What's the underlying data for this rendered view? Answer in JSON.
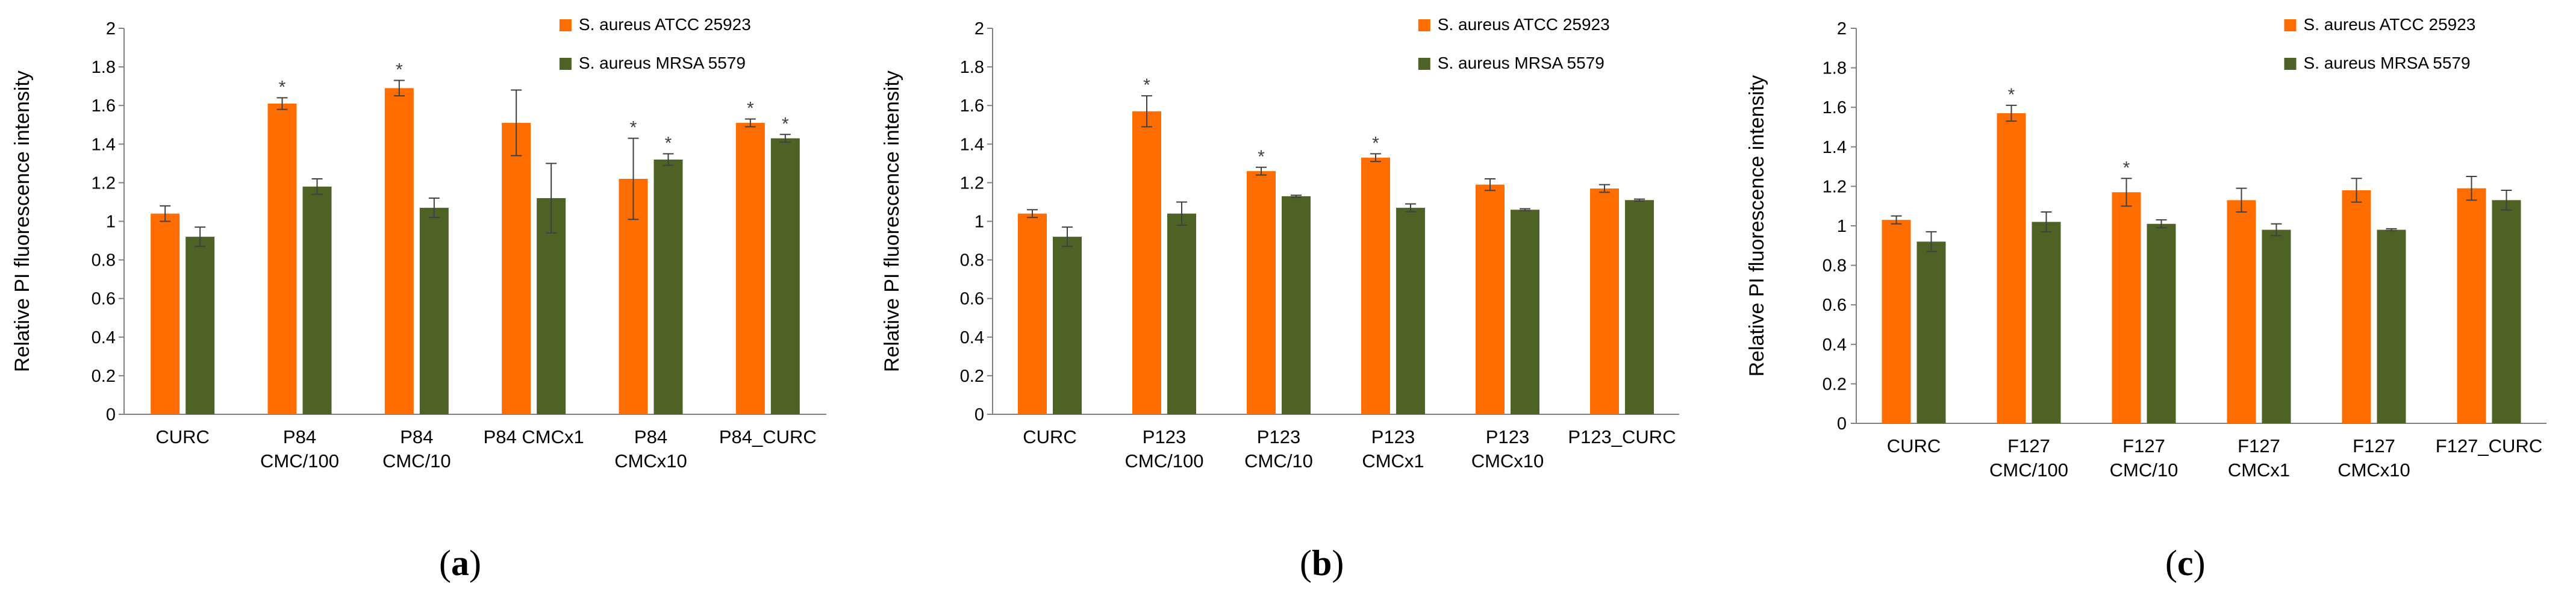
{
  "colors": {
    "atcc": "#FF6D00",
    "mrsa": "#4E6225",
    "axis": "#808080",
    "text": "#000000"
  },
  "chart_data": [
    {
      "type": "bar",
      "panel_label": "a",
      "ylabel": "Relative PI fluorescence intensity",
      "ylim": [
        0,
        2
      ],
      "yticks": [
        "0",
        "0.2",
        "0.4",
        "0.6",
        "0.8",
        "1",
        "1.2",
        "1.4",
        "1.6",
        "1.8",
        "2"
      ],
      "categories": [
        [
          "CURC"
        ],
        [
          "P84",
          "CMC/100"
        ],
        [
          "P84",
          "CMC/10"
        ],
        [
          "P84 CMCx1"
        ],
        [
          "P84",
          "CMCx10"
        ],
        [
          "P84_CURC"
        ]
      ],
      "series": [
        {
          "name": "S. aureus ATCC 25923",
          "values": [
            1.04,
            1.61,
            1.69,
            1.51,
            1.22,
            1.51
          ],
          "errors": [
            0.04,
            0.03,
            0.04,
            0.17,
            0.21,
            0.02
          ],
          "stars": [
            false,
            true,
            true,
            false,
            true,
            true
          ]
        },
        {
          "name": "S. aureus MRSA 5579",
          "values": [
            0.92,
            1.18,
            1.07,
            1.12,
            1.32,
            1.43
          ],
          "errors": [
            0.05,
            0.04,
            0.05,
            0.18,
            0.03,
            0.02
          ],
          "stars": [
            false,
            false,
            false,
            false,
            true,
            true
          ]
        }
      ],
      "star_symbol": "*"
    },
    {
      "type": "bar",
      "panel_label": "b",
      "ylabel": "Relative PI fluorescence intensity",
      "ylim": [
        0,
        2
      ],
      "yticks": [
        "0",
        "0.2",
        "0.4",
        "0.6",
        "0.8",
        "1",
        "1.2",
        "1.4",
        "1.6",
        "1.8",
        "2"
      ],
      "categories": [
        [
          "CURC"
        ],
        [
          "P123",
          "CMC/100"
        ],
        [
          "P123",
          "CMC/10"
        ],
        [
          "P123",
          "CMCx1"
        ],
        [
          "P123",
          "CMCx10"
        ],
        [
          "P123_CURC"
        ]
      ],
      "series": [
        {
          "name": "S. aureus ATCC 25923",
          "values": [
            1.04,
            1.57,
            1.26,
            1.33,
            1.19,
            1.17
          ],
          "errors": [
            0.02,
            0.08,
            0.02,
            0.02,
            0.03,
            0.02
          ],
          "stars": [
            false,
            true,
            true,
            true,
            false,
            false
          ]
        },
        {
          "name": "S. aureus MRSA 5579",
          "values": [
            0.92,
            1.04,
            1.13,
            1.07,
            1.06,
            1.11
          ],
          "errors": [
            0.05,
            0.06,
            0.005,
            0.02,
            0.005,
            0.005
          ],
          "stars": [
            false,
            false,
            false,
            false,
            false,
            false
          ]
        }
      ],
      "star_symbol": "*"
    },
    {
      "type": "bar",
      "panel_label": "c",
      "ylabel": "Relative PI fluorescence intensity",
      "ylim": [
        0,
        2
      ],
      "yticks": [
        "0",
        "0.2",
        "0.4",
        "0.6",
        "0.8",
        "1",
        "1.2",
        "1.4",
        "1.6",
        "1.8",
        "2"
      ],
      "categories": [
        [
          "CURC"
        ],
        [
          "F127",
          "CMC/100"
        ],
        [
          "F127",
          "CMC/10"
        ],
        [
          "F127",
          "CMCx1"
        ],
        [
          "F127",
          "CMCx10"
        ],
        [
          "F127_CURC"
        ]
      ],
      "series": [
        {
          "name": "S. aureus ATCC 25923",
          "values": [
            1.03,
            1.57,
            1.17,
            1.13,
            1.18,
            1.19
          ],
          "errors": [
            0.02,
            0.04,
            0.07,
            0.06,
            0.06,
            0.06
          ],
          "stars": [
            false,
            true,
            true,
            false,
            false,
            false
          ]
        },
        {
          "name": "S. aureus MRSA 5579",
          "values": [
            0.92,
            1.02,
            1.01,
            0.98,
            0.98,
            1.13
          ],
          "errors": [
            0.05,
            0.05,
            0.02,
            0.03,
            0.005,
            0.05
          ],
          "stars": [
            false,
            false,
            false,
            false,
            false,
            false
          ]
        }
      ],
      "star_symbol": "*"
    }
  ]
}
